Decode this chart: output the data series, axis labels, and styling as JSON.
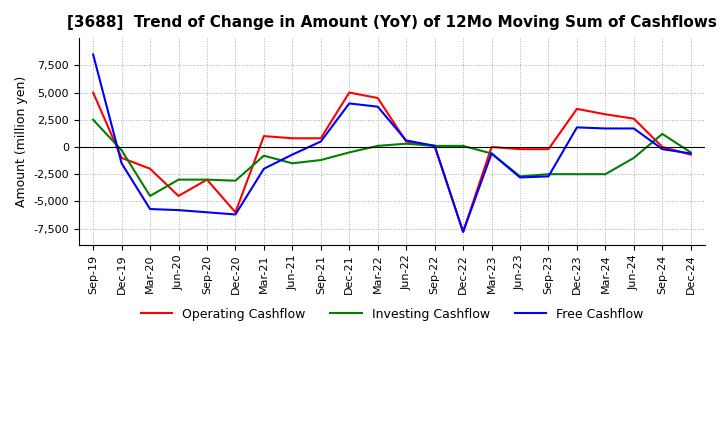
{
  "title": "[3688]  Trend of Change in Amount (YoY) of 12Mo Moving Sum of Cashflows",
  "ylabel": "Amount (million yen)",
  "background_color": "#ffffff",
  "grid_color": "#aaaaaa",
  "x_labels": [
    "Sep-19",
    "Dec-19",
    "Mar-20",
    "Jun-20",
    "Sep-20",
    "Dec-20",
    "Mar-21",
    "Jun-21",
    "Sep-21",
    "Dec-21",
    "Mar-22",
    "Jun-22",
    "Sep-22",
    "Dec-22",
    "Mar-23",
    "Jun-23",
    "Sep-23",
    "Dec-23",
    "Mar-24",
    "Jun-24",
    "Sep-24",
    "Dec-24"
  ],
  "operating": [
    5000,
    -1000,
    -2000,
    -4500,
    -3000,
    -6000,
    1000,
    800,
    800,
    5000,
    4500,
    500,
    100,
    -7800,
    0,
    -200,
    -200,
    3500,
    3000,
    2600,
    0,
    -700
  ],
  "investing": [
    2500,
    -300,
    -4500,
    -3000,
    -3000,
    -3100,
    -800,
    -1500,
    -1200,
    -500,
    100,
    300,
    100,
    100,
    -600,
    -2700,
    -2500,
    -2500,
    -2500,
    -1000,
    1200,
    -500
  ],
  "free": [
    8500,
    -1500,
    -5700,
    -5800,
    -6000,
    -6200,
    -2000,
    -700,
    500,
    4000,
    3700,
    600,
    100,
    -7800,
    -600,
    -2800,
    -2700,
    1800,
    1700,
    1700,
    -200,
    -600
  ],
  "ylim": [
    -9000,
    10000
  ],
  "yticks": [
    -7500,
    -5000,
    -2500,
    0,
    2500,
    5000,
    7500
  ],
  "line_colors": {
    "operating": "#ff0000",
    "investing": "#008000",
    "free": "#0000ff"
  },
  "legend_labels": {
    "operating": "Operating Cashflow",
    "investing": "Investing Cashflow",
    "free": "Free Cashflow"
  }
}
